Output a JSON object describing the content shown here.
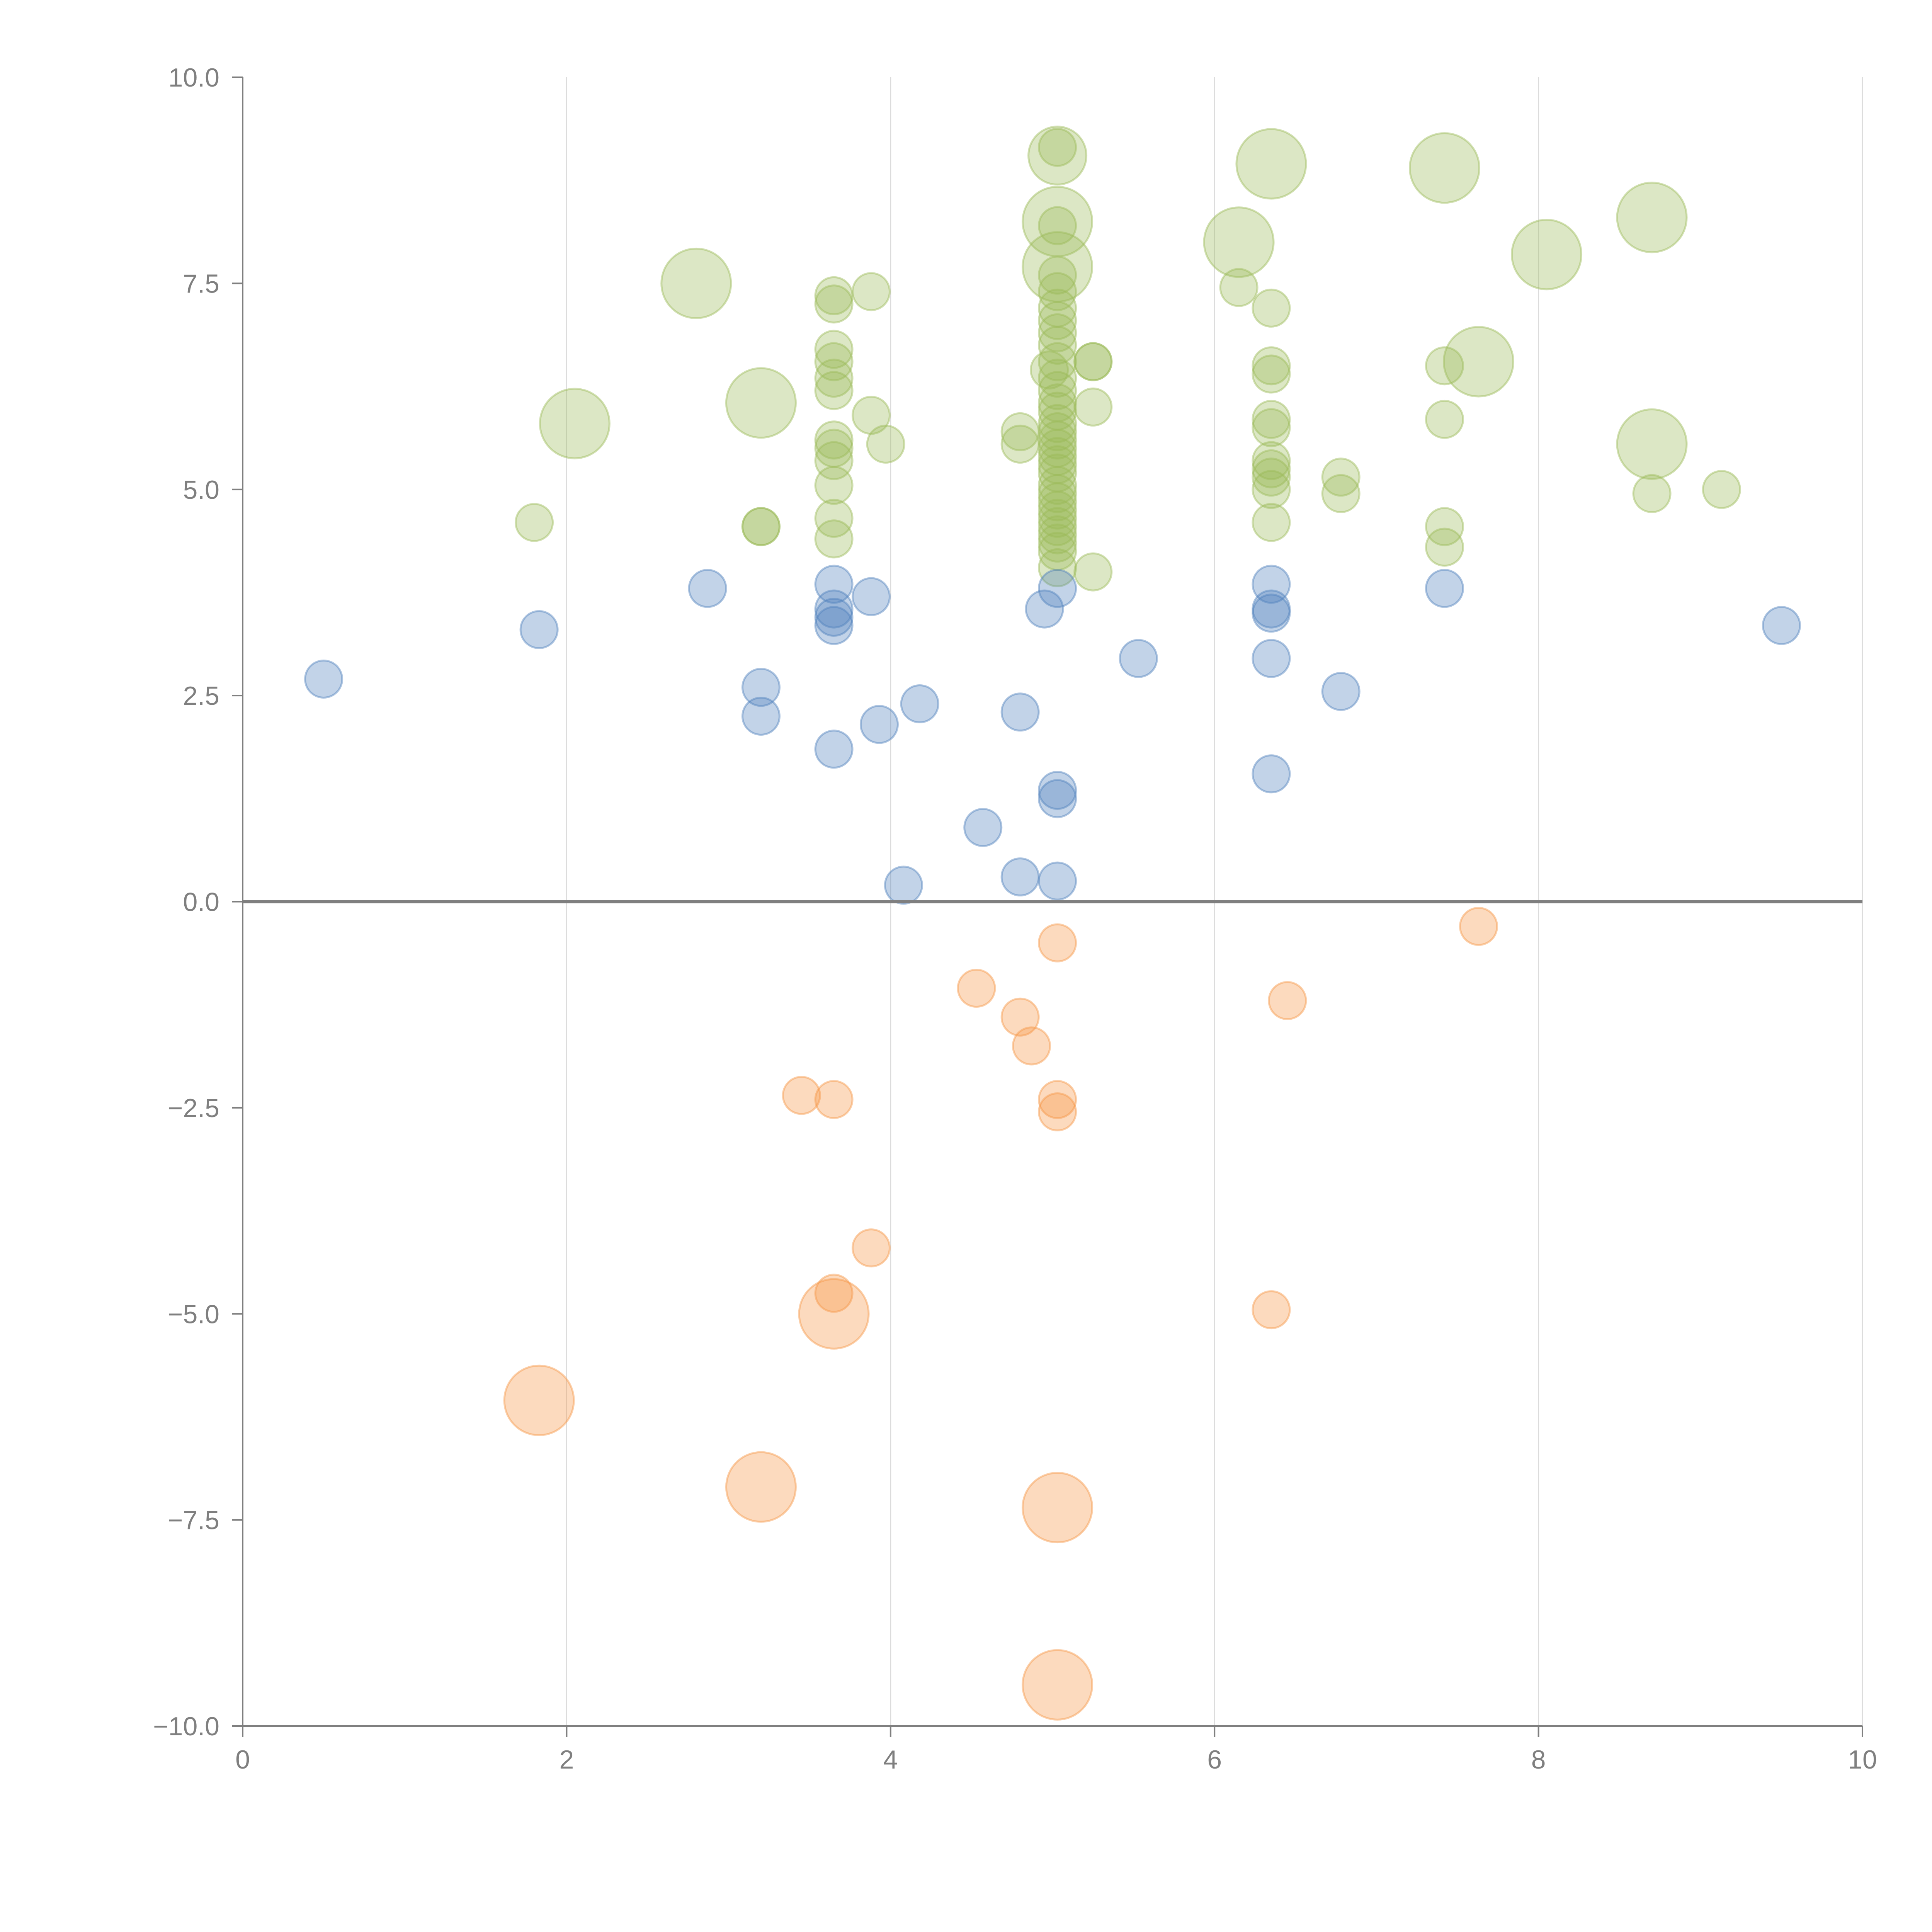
{
  "chart_data": {
    "type": "scatter",
    "title": "",
    "xlabel": "",
    "ylabel": "",
    "xlim": [
      0,
      10
    ],
    "ylim": [
      -10,
      10
    ],
    "x_ticks": [
      0,
      2,
      4,
      6,
      8,
      10
    ],
    "x_tick_labels": [
      "0",
      "2",
      "4",
      "6",
      "8",
      "10"
    ],
    "y_ticks": [
      10,
      7.5,
      5,
      2.5,
      0,
      -2.5,
      -5,
      -7.5,
      -10
    ],
    "y_tick_labels": [
      "10.0",
      "7.5",
      "5.0",
      "2.5",
      "0.0",
      "−2.5",
      "−5.0",
      "−7.5",
      "−10.0"
    ],
    "vertical_grid": true,
    "zero_line": true,
    "legend": "none",
    "series": [
      {
        "name": "green",
        "color": "#9bbb59",
        "points": [
          [
            1.8,
            4.6,
            1
          ],
          [
            2.05,
            5.8,
            3
          ],
          [
            2.8,
            7.5,
            3
          ],
          [
            3.2,
            6.05,
            3
          ],
          [
            3.2,
            4.55,
            1
          ],
          [
            3.2,
            4.55,
            1
          ],
          [
            3.65,
            7.35,
            1
          ],
          [
            3.65,
            7.25,
            1
          ],
          [
            3.65,
            6.7,
            1
          ],
          [
            3.65,
            6.55,
            1
          ],
          [
            3.65,
            6.35,
            1
          ],
          [
            3.65,
            6.2,
            1
          ],
          [
            3.65,
            5.6,
            1
          ],
          [
            3.65,
            5.5,
            1
          ],
          [
            3.65,
            5.35,
            1
          ],
          [
            3.65,
            5.05,
            1
          ],
          [
            3.65,
            4.65,
            1
          ],
          [
            3.65,
            4.4,
            1
          ],
          [
            3.88,
            7.4,
            1
          ],
          [
            3.88,
            5.9,
            1
          ],
          [
            3.97,
            5.55,
            1
          ],
          [
            4.8,
            5.7,
            1
          ],
          [
            4.8,
            5.55,
            1
          ],
          [
            5.03,
            9.05,
            2.5
          ],
          [
            5.03,
            9.15,
            1
          ],
          [
            5.03,
            8.25,
            3
          ],
          [
            5.03,
            8.2,
            1
          ],
          [
            5.03,
            7.7,
            3
          ],
          [
            5.03,
            7.6,
            1
          ],
          [
            5.03,
            7.4,
            1
          ],
          [
            5.03,
            7.2,
            1
          ],
          [
            5.03,
            7.05,
            1
          ],
          [
            5.03,
            6.9,
            1
          ],
          [
            5.03,
            6.75,
            1
          ],
          [
            5.03,
            6.55,
            1
          ],
          [
            4.98,
            6.45,
            1
          ],
          [
            5.03,
            6.35,
            1
          ],
          [
            5.03,
            6.2,
            1
          ],
          [
            5.03,
            6.05,
            1
          ],
          [
            5.03,
            5.95,
            1
          ],
          [
            5.03,
            5.8,
            1
          ],
          [
            5.03,
            5.7,
            1
          ],
          [
            5.03,
            5.6,
            1
          ],
          [
            5.03,
            5.5,
            1
          ],
          [
            5.03,
            5.4,
            1
          ],
          [
            5.03,
            5.3,
            1
          ],
          [
            5.03,
            5.2,
            1
          ],
          [
            5.03,
            5.05,
            1
          ],
          [
            5.03,
            4.95,
            1
          ],
          [
            5.03,
            4.85,
            1
          ],
          [
            5.03,
            4.75,
            1
          ],
          [
            5.03,
            4.65,
            1
          ],
          [
            5.03,
            4.55,
            1
          ],
          [
            5.03,
            4.45,
            1
          ],
          [
            5.03,
            4.35,
            1
          ],
          [
            5.03,
            4.25,
            1
          ],
          [
            5.03,
            4.05,
            1
          ],
          [
            5.25,
            6.55,
            1
          ],
          [
            5.25,
            6.55,
            1
          ],
          [
            5.25,
            6.0,
            1
          ],
          [
            5.25,
            4.0,
            1
          ],
          [
            6.15,
            8.0,
            3
          ],
          [
            6.15,
            7.45,
            1
          ],
          [
            6.35,
            8.95,
            3
          ],
          [
            6.35,
            7.2,
            1
          ],
          [
            6.35,
            6.5,
            1
          ],
          [
            6.35,
            6.4,
            1
          ],
          [
            6.35,
            5.85,
            1
          ],
          [
            6.35,
            5.75,
            1
          ],
          [
            6.35,
            5.35,
            1
          ],
          [
            6.35,
            5.25,
            1
          ],
          [
            6.35,
            5.15,
            1
          ],
          [
            6.35,
            5.0,
            1
          ],
          [
            6.35,
            4.6,
            1
          ],
          [
            6.78,
            5.15,
            1
          ],
          [
            6.78,
            4.95,
            1
          ],
          [
            7.42,
            8.9,
            3
          ],
          [
            7.42,
            6.5,
            1
          ],
          [
            7.42,
            5.85,
            1
          ],
          [
            7.42,
            4.55,
            1
          ],
          [
            7.42,
            4.3,
            1
          ],
          [
            7.63,
            6.55,
            3
          ],
          [
            8.05,
            7.85,
            3
          ],
          [
            8.7,
            8.3,
            3
          ],
          [
            8.7,
            5.55,
            3
          ],
          [
            8.7,
            4.95,
            1
          ],
          [
            9.13,
            5.0,
            1
          ]
        ]
      },
      {
        "name": "blue",
        "color": "#4f81bd",
        "points": [
          [
            0.5,
            2.7,
            1
          ],
          [
            1.83,
            3.3,
            1
          ],
          [
            2.87,
            3.8,
            1
          ],
          [
            3.2,
            2.6,
            1
          ],
          [
            3.2,
            2.25,
            1
          ],
          [
            3.65,
            3.85,
            1
          ],
          [
            3.65,
            3.55,
            1
          ],
          [
            3.65,
            3.45,
            1
          ],
          [
            3.65,
            3.35,
            1
          ],
          [
            3.65,
            1.85,
            1
          ],
          [
            3.88,
            3.7,
            1
          ],
          [
            3.93,
            2.15,
            1
          ],
          [
            4.08,
            0.2,
            1
          ],
          [
            4.18,
            2.4,
            1
          ],
          [
            4.57,
            0.9,
            1
          ],
          [
            4.8,
            2.3,
            1
          ],
          [
            4.8,
            0.3,
            1
          ],
          [
            4.95,
            3.55,
            1
          ],
          [
            5.03,
            3.8,
            1
          ],
          [
            5.03,
            1.35,
            1
          ],
          [
            5.03,
            1.25,
            1
          ],
          [
            5.03,
            0.25,
            1
          ],
          [
            5.53,
            2.95,
            1
          ],
          [
            6.35,
            3.85,
            1
          ],
          [
            6.35,
            3.55,
            1
          ],
          [
            6.35,
            3.5,
            1
          ],
          [
            6.35,
            2.95,
            1
          ],
          [
            6.35,
            1.55,
            1
          ],
          [
            6.78,
            2.55,
            1
          ],
          [
            7.42,
            3.8,
            1
          ],
          [
            9.5,
            3.35,
            1
          ]
        ]
      },
      {
        "name": "orange",
        "color": "#f79646",
        "points": [
          [
            1.83,
            -6.05,
            3
          ],
          [
            3.2,
            -7.1,
            3
          ],
          [
            3.45,
            -2.35,
            1
          ],
          [
            3.65,
            -2.4,
            1
          ],
          [
            3.65,
            -4.75,
            1
          ],
          [
            3.65,
            -5.0,
            3
          ],
          [
            3.88,
            -4.2,
            1
          ],
          [
            4.53,
            -1.05,
            1
          ],
          [
            4.8,
            -1.4,
            1
          ],
          [
            4.87,
            -1.75,
            1
          ],
          [
            5.03,
            -0.5,
            1
          ],
          [
            5.03,
            -2.4,
            1
          ],
          [
            5.03,
            -2.55,
            1
          ],
          [
            5.03,
            -7.35,
            3
          ],
          [
            5.03,
            -9.5,
            3
          ],
          [
            6.35,
            -4.95,
            1
          ],
          [
            6.45,
            -1.2,
            1
          ],
          [
            7.63,
            -0.3,
            1
          ]
        ]
      }
    ]
  }
}
